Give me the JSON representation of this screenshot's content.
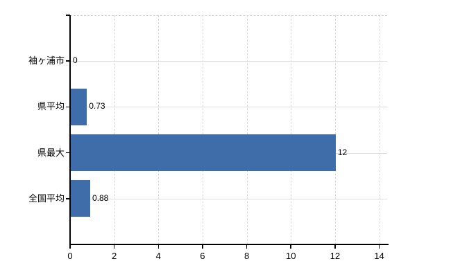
{
  "chart_data": {
    "type": "bar",
    "orientation": "horizontal",
    "title": "",
    "xlabel": "",
    "ylabel": "",
    "categories": [
      "袖ヶ浦市",
      "県平均",
      "県最大",
      "全国平均"
    ],
    "values": [
      0,
      0.73,
      12,
      0.88
    ],
    "value_labels": [
      "0",
      "0.73",
      "12",
      "0.88"
    ],
    "xlim": [
      0,
      14
    ],
    "x_ticks": [
      0,
      2,
      4,
      6,
      8,
      10,
      12,
      14
    ],
    "grid": true,
    "legend": "none",
    "colors": {
      "bar": "#3e6daa",
      "grid": "#d9d9d9",
      "axis": "#000000",
      "text": "#000000",
      "background": "#ffffff"
    }
  }
}
